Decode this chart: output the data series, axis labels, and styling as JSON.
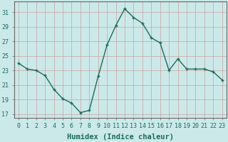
{
  "x": [
    0,
    1,
    2,
    3,
    4,
    5,
    6,
    7,
    8,
    9,
    10,
    11,
    12,
    13,
    14,
    15,
    16,
    17,
    18,
    19,
    20,
    21,
    22,
    23
  ],
  "y": [
    24.0,
    23.2,
    23.0,
    22.3,
    20.4,
    19.1,
    18.5,
    17.2,
    17.5,
    22.2,
    26.5,
    29.2,
    31.5,
    30.3,
    29.5,
    27.5,
    26.8,
    23.0,
    24.6,
    23.2,
    23.2,
    23.2,
    22.8,
    21.7
  ],
  "line_color": "#1a6b5a",
  "marker": "+",
  "marker_size": 3,
  "bg_color": "#cce9e9",
  "grid_color": "#b0d5d5",
  "xlabel": "Humidex (Indice chaleur)",
  "yticks": [
    17,
    19,
    21,
    23,
    25,
    27,
    29,
    31
  ],
  "xticks": [
    0,
    1,
    2,
    3,
    4,
    5,
    6,
    7,
    8,
    9,
    10,
    11,
    12,
    13,
    14,
    15,
    16,
    17,
    18,
    19,
    20,
    21,
    22,
    23
  ],
  "ylim": [
    16.5,
    32.5
  ],
  "xlim": [
    -0.5,
    23.5
  ],
  "tick_color": "#1a6b5a",
  "label_fontsize": 7.5,
  "tick_fontsize": 6.0,
  "linewidth": 1.0,
  "spine_color": "#666666"
}
